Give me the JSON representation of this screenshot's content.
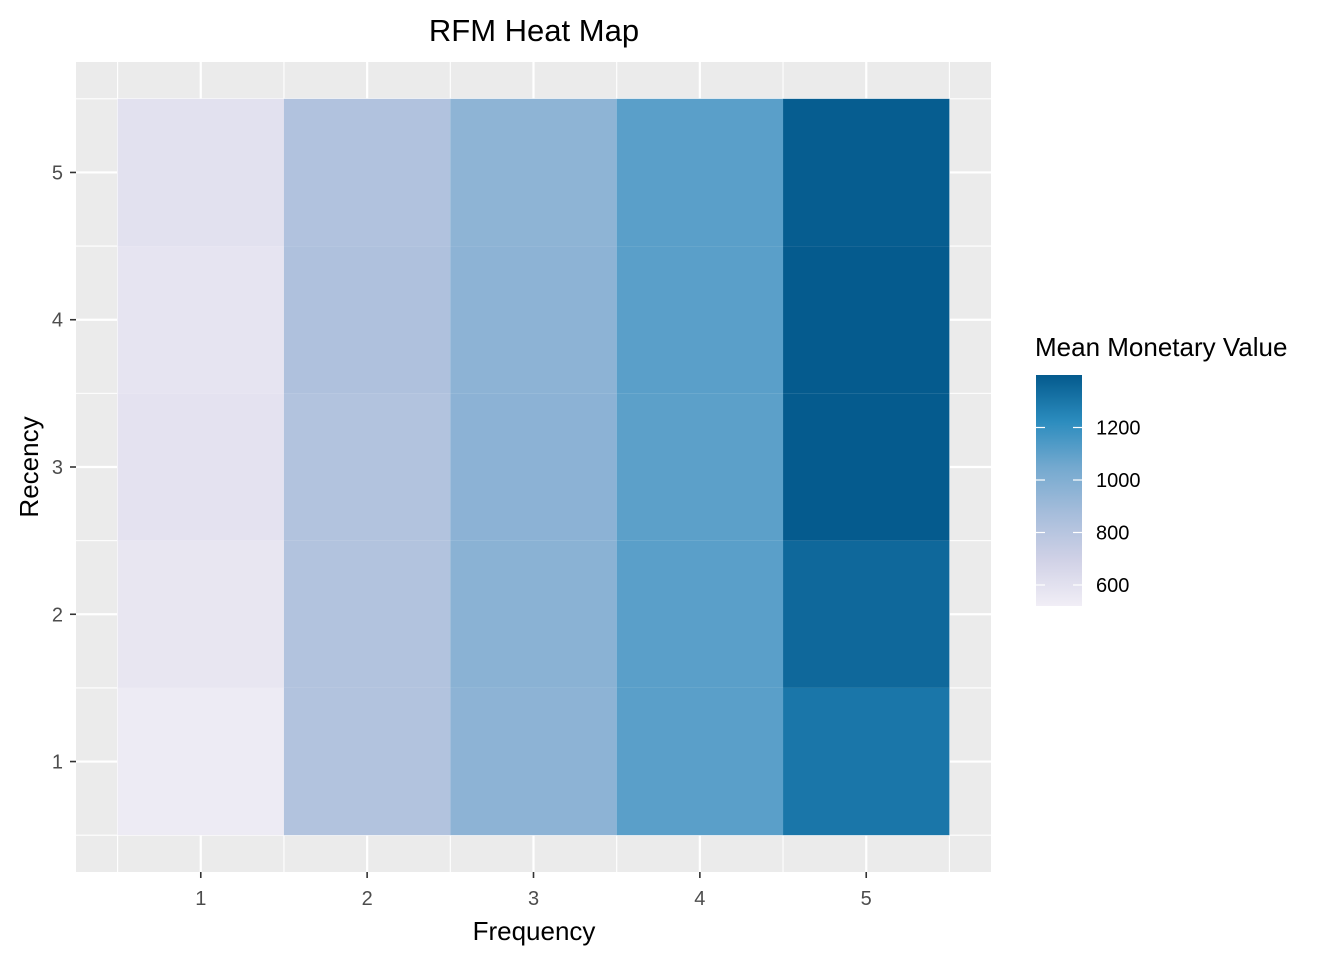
{
  "chart_data": {
    "type": "heatmap",
    "title": "RFM Heat Map",
    "xlabel": "Frequency",
    "ylabel": "Recency",
    "x_categories": [
      "1",
      "2",
      "3",
      "4",
      "5"
    ],
    "y_categories": [
      "1",
      "2",
      "3",
      "4",
      "5"
    ],
    "cells": [
      {
        "x": "1",
        "y": "1",
        "value": 540
      },
      {
        "x": "1",
        "y": "2",
        "value": 570
      },
      {
        "x": "1",
        "y": "3",
        "value": 590
      },
      {
        "x": "1",
        "y": "4",
        "value": 580
      },
      {
        "x": "1",
        "y": "5",
        "value": 600
      },
      {
        "x": "2",
        "y": "1",
        "value": 820
      },
      {
        "x": "2",
        "y": "2",
        "value": 820
      },
      {
        "x": "2",
        "y": "3",
        "value": 820
      },
      {
        "x": "2",
        "y": "4",
        "value": 835
      },
      {
        "x": "2",
        "y": "5",
        "value": 825
      },
      {
        "x": "3",
        "y": "1",
        "value": 960
      },
      {
        "x": "3",
        "y": "2",
        "value": 970
      },
      {
        "x": "3",
        "y": "3",
        "value": 965
      },
      {
        "x": "3",
        "y": "4",
        "value": 960
      },
      {
        "x": "3",
        "y": "5",
        "value": 955
      },
      {
        "x": "4",
        "y": "1",
        "value": 1110
      },
      {
        "x": "4",
        "y": "2",
        "value": 1110
      },
      {
        "x": "4",
        "y": "3",
        "value": 1105
      },
      {
        "x": "4",
        "y": "4",
        "value": 1110
      },
      {
        "x": "4",
        "y": "5",
        "value": 1110
      },
      {
        "x": "5",
        "y": "1",
        "value": 1300
      },
      {
        "x": "5",
        "y": "2",
        "value": 1350
      },
      {
        "x": "5",
        "y": "3",
        "value": 1395
      },
      {
        "x": "5",
        "y": "4",
        "value": 1395
      },
      {
        "x": "5",
        "y": "5",
        "value": 1390
      }
    ],
    "legend": {
      "title": "Mean Monetary Value",
      "range": [
        520,
        1400
      ],
      "breaks": [
        600,
        800,
        1000,
        1200
      ],
      "break_labels": [
        "600",
        "800",
        "1000",
        "1200"
      ],
      "placement": "right"
    },
    "color_scale": {
      "stops": [
        "#f1eef6",
        "#d0d1e6",
        "#a6bddb",
        "#74a9cf",
        "#2b8cbe",
        "#045a8d"
      ]
    },
    "panel_background": "#ebebeb",
    "gridline_color": "#ffffff",
    "grid": true
  }
}
